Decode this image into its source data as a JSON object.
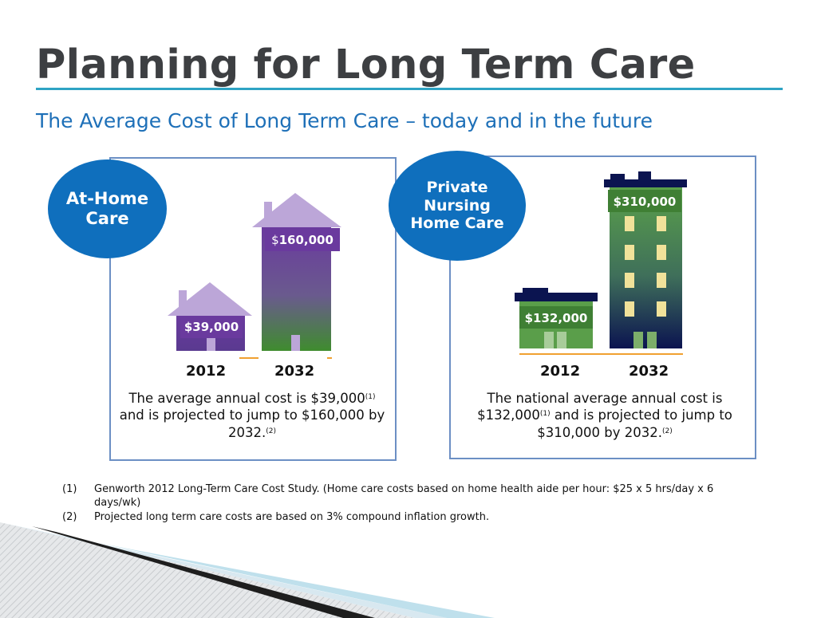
{
  "slide": {
    "title": "Planning for Long Term Care",
    "subtitle": "The Average Cost of Long Term Care – today and in the future"
  },
  "at_home": {
    "label": "At-Home\nCare",
    "cost_2012": "$39,000",
    "cost_2032_symbol": "$",
    "cost_2032_amount": "160,000",
    "year_1": "2012",
    "year_2": "2032",
    "desc_line1": "The average annual cost is $39,000",
    "desc_sup1": "(1)",
    "desc_line2": "and is projected to jump to $160,000 by 2032.",
    "desc_sup2": "(2)"
  },
  "nursing": {
    "label": "Private\nNursing\nHome Care",
    "cost_2012": "$132,000",
    "cost_2032": "$310,000",
    "year_1": "2012",
    "year_2": "2032",
    "desc_part1": "The national average annual cost is $132,000",
    "desc_sup1": "(1)",
    "desc_part2": " and is projected to jump to $310,000 by 2032.",
    "desc_sup2": "(2)"
  },
  "footnotes": [
    {
      "num": "(1)",
      "text": "Genworth 2012 Long-Term Care Cost Study. (Home care costs based on home health aide per hour: $25 x 5 hrs/day x 6 days/wk)"
    },
    {
      "num": "(2)",
      "text": "Projected long term care costs are based on 3% compound inflation growth."
    }
  ],
  "colors": {
    "title": "#3d3f42",
    "accent_rule": "#2ea3c4",
    "subtitle": "#1e70b8",
    "ellipse": "#0f6fbd",
    "house_roof": "#bca6d8",
    "house_body": "#6a3a9e",
    "building_top": "#0b1450",
    "building_green": "#5a9e4a",
    "window": "#f1e29a",
    "ground_line": "#f0a030"
  }
}
